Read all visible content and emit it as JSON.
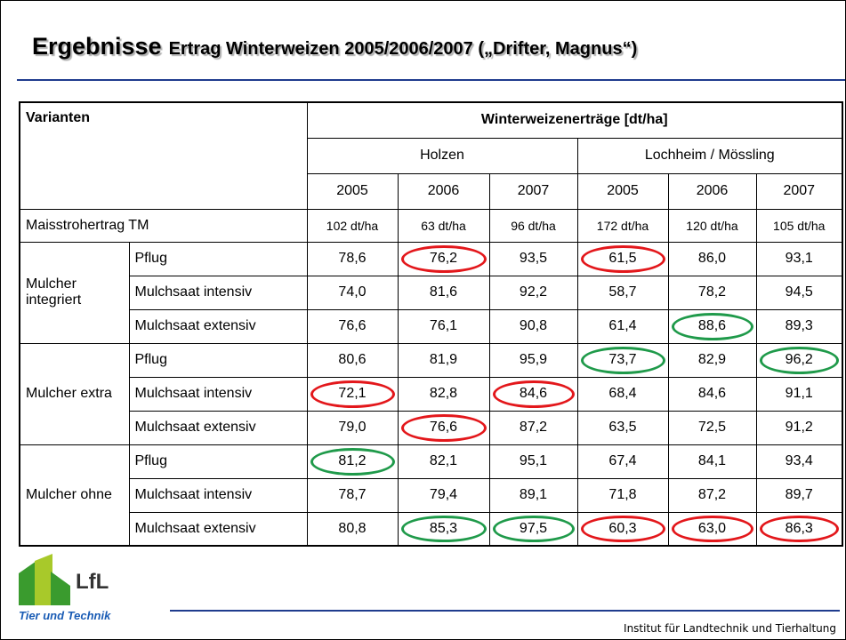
{
  "title": {
    "main": "Ergebnisse",
    "sub": "Ertrag Winterweizen 2005/2006/2007 („Drifter, Magnus“)"
  },
  "table": {
    "header": {
      "variants": "Varianten",
      "measure": "Winterweizenerträge [dt/ha]",
      "sites": [
        "Holzen",
        "Lochheim / Mössling"
      ],
      "years": [
        "2005",
        "2006",
        "2007",
        "2005",
        "2006",
        "2007"
      ]
    },
    "straw": {
      "label": "Maisstrohertrag TM",
      "values": [
        "102 dt/ha",
        "63 dt/ha",
        "96 dt/ha",
        "172 dt/ha",
        "120 dt/ha",
        "105 dt/ha"
      ]
    },
    "groups": [
      {
        "label": "Mulcher integriert",
        "rows": [
          {
            "variant": "Pflug",
            "values": [
              "78,6",
              "76,2",
              "93,5",
              "61,5",
              "86,0",
              "93,1"
            ],
            "circles": [
              null,
              "#e3171b",
              null,
              "#e3171b",
              null,
              null
            ]
          },
          {
            "variant": "Mulchsaat intensiv",
            "values": [
              "74,0",
              "81,6",
              "92,2",
              "58,7",
              "78,2",
              "94,5"
            ],
            "circles": [
              null,
              null,
              null,
              null,
              null,
              null
            ]
          },
          {
            "variant": "Mulchsaat extensiv",
            "values": [
              "76,6",
              "76,1",
              "90,8",
              "61,4",
              "88,6",
              "89,3"
            ],
            "circles": [
              null,
              null,
              null,
              null,
              "#1f9a4a",
              null
            ]
          }
        ]
      },
      {
        "label": "Mulcher extra",
        "rows": [
          {
            "variant": "Pflug",
            "values": [
              "80,6",
              "81,9",
              "95,9",
              "73,7",
              "82,9",
              "96,2"
            ],
            "circles": [
              null,
              null,
              null,
              "#1f9a4a",
              null,
              "#1f9a4a"
            ]
          },
          {
            "variant": "Mulchsaat intensiv",
            "values": [
              "72,1",
              "82,8",
              "84,6",
              "68,4",
              "84,6",
              "91,1"
            ],
            "circles": [
              "#e3171b",
              null,
              "#e3171b",
              null,
              null,
              null
            ]
          },
          {
            "variant": "Mulchsaat extensiv",
            "values": [
              "79,0",
              "76,6",
              "87,2",
              "63,5",
              "72,5",
              "91,2"
            ],
            "circles": [
              null,
              "#e3171b",
              null,
              null,
              null,
              null
            ]
          }
        ]
      },
      {
        "label": "Mulcher ohne",
        "rows": [
          {
            "variant": "Pflug",
            "values": [
              "81,2",
              "82,1",
              "95,1",
              "67,4",
              "84,1",
              "93,4"
            ],
            "circles": [
              "#1f9a4a",
              null,
              null,
              null,
              null,
              null
            ]
          },
          {
            "variant": "Mulchsaat intensiv",
            "values": [
              "78,7",
              "79,4",
              "89,1",
              "71,8",
              "87,2",
              "89,7"
            ],
            "circles": [
              null,
              null,
              null,
              null,
              null,
              null
            ]
          },
          {
            "variant": "Mulchsaat extensiv",
            "values": [
              "80,8",
              "85,3",
              "97,5",
              "60,3",
              "63,0",
              "86,3"
            ],
            "circles": [
              null,
              "#1f9a4a",
              "#1f9a4a",
              "#e3171b",
              "#e3171b",
              "#e3171b"
            ]
          }
        ]
      }
    ]
  },
  "footer": {
    "logo": "LfL",
    "tagline": "Tier und Technik",
    "institute": "Institut für Landtechnik und Tierhaltung"
  }
}
